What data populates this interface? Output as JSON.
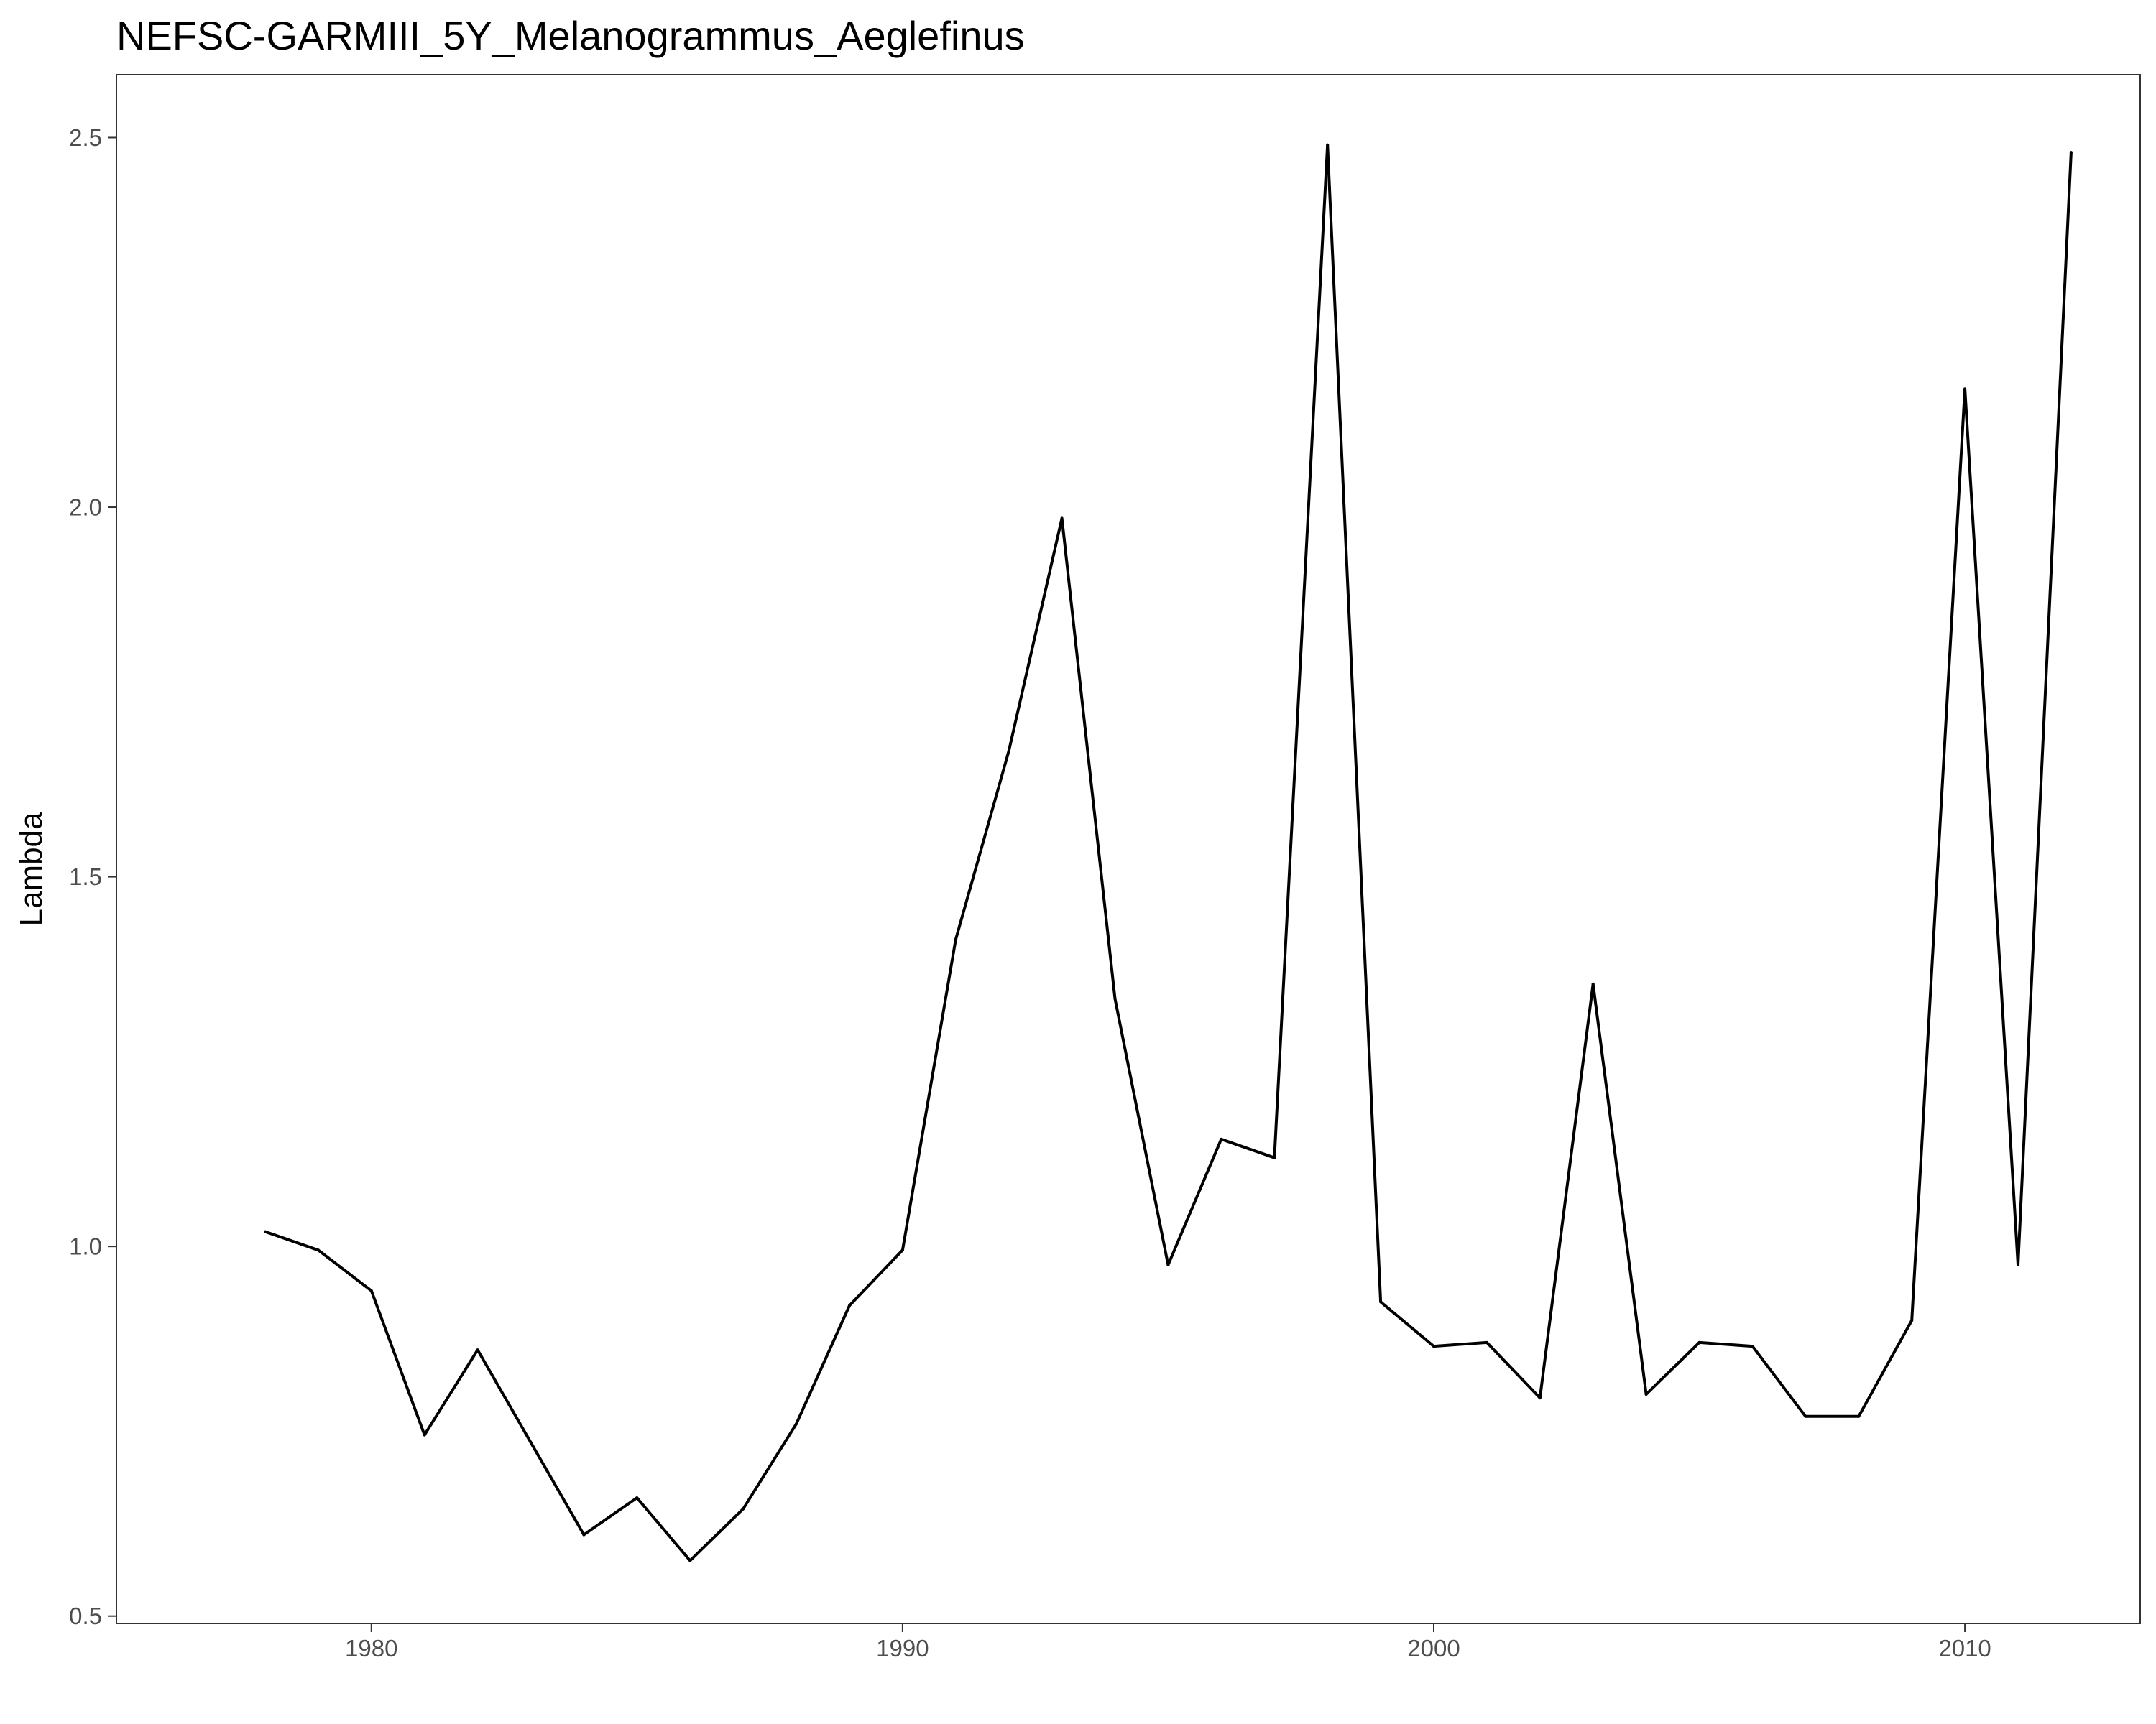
{
  "chart_data": {
    "type": "line",
    "title": "NEFSC-GARMIII_5Y_Melanogrammus_Aeglefinus",
    "xlabel": "",
    "ylabel": "Lambda",
    "xlim": [
      1975.2,
      2013.3
    ],
    "ylim": [
      0.49,
      2.585
    ],
    "x_ticks": [
      1980,
      1990,
      2000,
      2010
    ],
    "y_ticks": [
      0.5,
      1.0,
      1.5,
      2.0,
      2.5
    ],
    "y_tick_labels": [
      "0.5",
      "1.0",
      "1.5",
      "2.0",
      "2.5"
    ],
    "grid": false,
    "legend": "none",
    "line_color": "#000000",
    "series": [
      {
        "x": [
          1978,
          1979,
          1980,
          1981,
          1982,
          1983,
          1984,
          1985,
          1986,
          1987,
          1988,
          1989,
          1990,
          1991,
          1992,
          1993,
          1994,
          1995,
          1996,
          1997,
          1998,
          1999,
          2000,
          2001,
          2002,
          2003,
          2004,
          2005,
          2006,
          2007,
          2008,
          2009,
          2010,
          2011,
          2012
        ],
        "y": [
          1.02,
          0.995,
          0.94,
          0.745,
          0.86,
          0.735,
          0.61,
          0.66,
          0.575,
          0.645,
          0.76,
          0.92,
          0.995,
          1.415,
          1.67,
          1.985,
          1.335,
          0.975,
          1.145,
          1.12,
          2.49,
          0.925,
          0.865,
          0.87,
          0.795,
          1.355,
          0.8,
          0.87,
          0.865,
          0.77,
          0.77,
          0.9,
          2.16,
          0.975,
          2.48
        ]
      }
    ]
  }
}
